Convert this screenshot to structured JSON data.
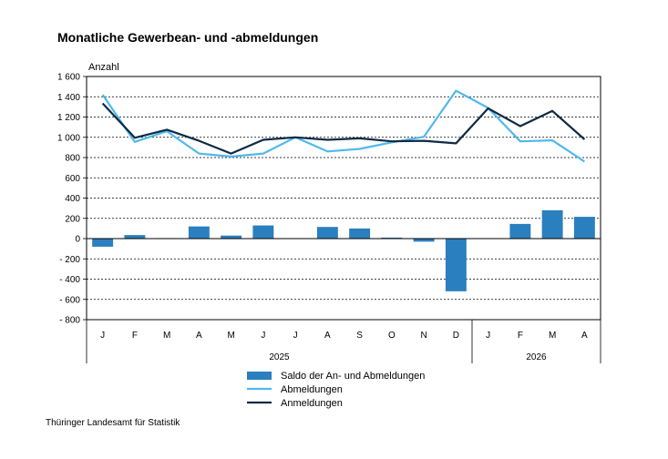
{
  "title": "Monatliche Gewerbean- und -abmeldungen",
  "source": "Thüringer Landesamt für Statistik",
  "chart_data": {
    "type": "bar+line",
    "ylabel": "Anzahl",
    "ylim": [
      -800,
      1600
    ],
    "yticks": [
      1600,
      1400,
      1200,
      1000,
      800,
      600,
      400,
      200,
      0,
      -200,
      -400,
      -600,
      -800
    ],
    "ytick_labels": [
      "1 600",
      "1 400",
      "1 200",
      "1 000",
      "800",
      "600",
      "400",
      "200",
      "0",
      "- 200",
      "- 400",
      "- 600",
      "- 800"
    ],
    "grid": "horizontal dashed",
    "categories": [
      "J",
      "F",
      "M",
      "A",
      "M",
      "J",
      "J",
      "A",
      "S",
      "O",
      "N",
      "D",
      "J",
      "F",
      "M",
      "A"
    ],
    "year_groups": [
      {
        "label": "2025",
        "count": 12
      },
      {
        "label": "2026",
        "count": 4
      }
    ],
    "legend_position": "bottom",
    "series": [
      {
        "name": "Saldo der An- und Abmeldungen",
        "kind": "bar",
        "color": "#2a7fbf",
        "values": [
          -80,
          35,
          5,
          120,
          30,
          130,
          null,
          115,
          100,
          10,
          -30,
          -520,
          null,
          145,
          280,
          215
        ]
      },
      {
        "name": "Abmeldungen",
        "kind": "line",
        "color": "#4fb9ec",
        "values": [
          1420,
          955,
          1060,
          840,
          810,
          840,
          1000,
          860,
          885,
          950,
          1005,
          1460,
          1290,
          960,
          970,
          760
        ]
      },
      {
        "name": "Anmeldungen",
        "kind": "line",
        "color": "#0d2a45",
        "values": [
          1335,
          995,
          1075,
          965,
          840,
          975,
          1000,
          975,
          990,
          960,
          965,
          940,
          1285,
          1110,
          1260,
          980
        ]
      }
    ]
  }
}
